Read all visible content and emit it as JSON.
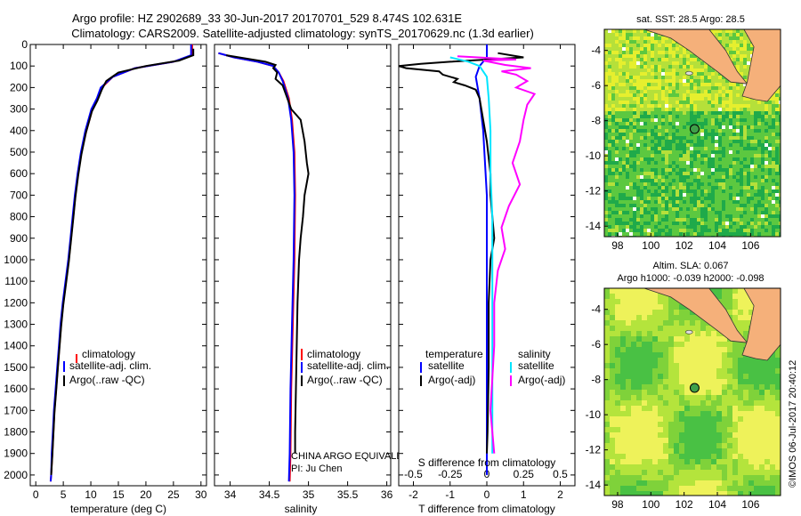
{
  "header": {
    "line1": "Argo profile: HZ 2902689_33 30-Jun-2017 20170701_529 8.474S 102.631E",
    "line2": "Climatology: CARS2009. Satellite-adjusted climatology: synTS_20170629.nc (1.3d earlier)"
  },
  "watermark": "©IMOS 06-Jul-2017 20:40:12",
  "colors": {
    "climatology": "#ff0000",
    "satellite": "#0000ff",
    "argo": "#000000",
    "sat_salinity": "#00e5ff",
    "argo_salinity": "#ff00ff",
    "land": "#f5b07a"
  },
  "chart_data": [
    {
      "id": "temperature",
      "type": "line",
      "xlabel": "temperature (deg C)",
      "ylabel": "",
      "xlim": [
        -1,
        31
      ],
      "ylim": [
        2050,
        0
      ],
      "xticks": [
        0,
        5,
        10,
        15,
        20,
        25,
        30
      ],
      "yticks": [
        0,
        100,
        200,
        300,
        400,
        500,
        600,
        700,
        800,
        900,
        1000,
        1100,
        1200,
        1300,
        1400,
        1500,
        1600,
        1700,
        1800,
        1900,
        2000
      ],
      "legend": [
        "climatology",
        "satellite-adj. clim.",
        "Argo(..raw -QC)"
      ],
      "legend_position": "lower-right",
      "series": [
        {
          "name": "climatology",
          "color": "#ff0000",
          "points": [
            [
              28.4,
              0
            ],
            [
              28.4,
              50
            ],
            [
              25,
              80
            ],
            [
              18,
              110
            ],
            [
              14,
              150
            ],
            [
              12,
              200
            ],
            [
              11.3,
              250
            ],
            [
              10.3,
              300
            ],
            [
              9.2,
              400
            ],
            [
              8.3,
              500
            ],
            [
              7.7,
              600
            ],
            [
              7.2,
              700
            ],
            [
              6.8,
              800
            ],
            [
              6.4,
              900
            ],
            [
              6.0,
              1000
            ],
            [
              5.5,
              1100
            ],
            [
              5.0,
              1200
            ],
            [
              4.6,
              1300
            ],
            [
              4.3,
              1400
            ],
            [
              4.0,
              1500
            ],
            [
              3.7,
              1600
            ],
            [
              3.4,
              1700
            ],
            [
              3.2,
              1800
            ],
            [
              3.0,
              1900
            ],
            [
              2.8,
              2000
            ],
            [
              2.7,
              2030
            ]
          ]
        },
        {
          "name": "satellite-adj. clim.",
          "color": "#0000ff",
          "points": [
            [
              28.2,
              0
            ],
            [
              28.2,
              50
            ],
            [
              25,
              80
            ],
            [
              18,
              110
            ],
            [
              14,
              150
            ],
            [
              11.8,
              200
            ],
            [
              11.1,
              250
            ],
            [
              10.1,
              300
            ],
            [
              9.0,
              400
            ],
            [
              8.2,
              500
            ],
            [
              7.6,
              600
            ],
            [
              7.1,
              700
            ],
            [
              6.7,
              800
            ],
            [
              6.3,
              900
            ],
            [
              5.9,
              1000
            ],
            [
              5.4,
              1100
            ],
            [
              4.9,
              1200
            ],
            [
              4.5,
              1300
            ],
            [
              4.2,
              1400
            ],
            [
              3.9,
              1500
            ],
            [
              3.6,
              1600
            ],
            [
              3.3,
              1700
            ],
            [
              3.1,
              1800
            ],
            [
              2.9,
              1900
            ],
            [
              2.8,
              2000
            ],
            [
              2.7,
              2030
            ]
          ]
        },
        {
          "name": "Argo(..raw -QC)",
          "color": "#000000",
          "points": [
            [
              28.6,
              20
            ],
            [
              28.6,
              50
            ],
            [
              26,
              75
            ],
            [
              20,
              100
            ],
            [
              15,
              130
            ],
            [
              12.8,
              170
            ],
            [
              12.0,
              210
            ],
            [
              11.2,
              260
            ],
            [
              10.2,
              310
            ],
            [
              9.1,
              410
            ],
            [
              8.3,
              510
            ],
            [
              7.7,
              610
            ],
            [
              7.2,
              710
            ],
            [
              6.8,
              810
            ],
            [
              6.4,
              910
            ],
            [
              6.0,
              1010
            ],
            [
              5.5,
              1110
            ],
            [
              5.0,
              1210
            ],
            [
              4.6,
              1310
            ],
            [
              4.3,
              1410
            ],
            [
              4.0,
              1510
            ],
            [
              3.7,
              1610
            ],
            [
              3.4,
              1710
            ],
            [
              3.2,
              1810
            ],
            [
              3.0,
              1910
            ],
            [
              2.8,
              2000
            ]
          ]
        }
      ]
    },
    {
      "id": "salinity",
      "type": "line",
      "xlabel": "salinity",
      "xlim": [
        33.8,
        36.05
      ],
      "ylim": [
        2050,
        0
      ],
      "xticks": [
        34,
        34.5,
        35,
        35.5,
        36
      ],
      "legend": [
        "climatology",
        "satellite-adj. clim.",
        "Argo(..raw -QC)"
      ],
      "legend_position": "lower-right",
      "annotations": [
        "CHINA ARGO EQUIVALENT",
        "PI: Ju Chen"
      ],
      "series": [
        {
          "name": "climatology",
          "color": "#ff0000",
          "points": [
            [
              33.85,
              40
            ],
            [
              34.05,
              60
            ],
            [
              34.35,
              80
            ],
            [
              34.55,
              100
            ],
            [
              34.62,
              130
            ],
            [
              34.68,
              170
            ],
            [
              34.75,
              250
            ],
            [
              34.79,
              350
            ],
            [
              34.82,
              500
            ],
            [
              34.83,
              700
            ],
            [
              34.82,
              1000
            ],
            [
              34.8,
              1300
            ],
            [
              34.78,
              1600
            ],
            [
              34.77,
              1900
            ],
            [
              34.76,
              2030
            ]
          ]
        },
        {
          "name": "satellite-adj. clim.",
          "color": "#0000ff",
          "points": [
            [
              33.85,
              40
            ],
            [
              34.05,
              60
            ],
            [
              34.35,
              80
            ],
            [
              34.55,
              100
            ],
            [
              34.62,
              130
            ],
            [
              34.67,
              170
            ],
            [
              34.74,
              250
            ],
            [
              34.78,
              350
            ],
            [
              34.81,
              500
            ],
            [
              34.82,
              700
            ],
            [
              34.81,
              1000
            ],
            [
              34.79,
              1300
            ],
            [
              34.77,
              1600
            ],
            [
              34.76,
              1900
            ],
            [
              34.75,
              2030
            ]
          ]
        },
        {
          "name": "Argo(..raw -QC)",
          "color": "#000000",
          "points": [
            [
              33.95,
              50
            ],
            [
              34.2,
              65
            ],
            [
              34.45,
              80
            ],
            [
              34.58,
              95
            ],
            [
              34.55,
              110
            ],
            [
              34.6,
              130
            ],
            [
              34.58,
              160
            ],
            [
              34.67,
              190
            ],
            [
              34.72,
              240
            ],
            [
              34.78,
              300
            ],
            [
              34.9,
              350
            ],
            [
              34.95,
              450
            ],
            [
              34.98,
              550
            ],
            [
              35.0,
              600
            ],
            [
              34.95,
              700
            ],
            [
              34.93,
              800
            ],
            [
              34.9,
              900
            ],
            [
              34.88,
              1000
            ],
            [
              34.86,
              1200
            ],
            [
              34.85,
              1400
            ],
            [
              34.84,
              1600
            ],
            [
              34.83,
              1800
            ],
            [
              34.83,
              1900
            ]
          ]
        }
      ]
    },
    {
      "id": "difference",
      "type": "line",
      "xlabel": "T difference from climatology",
      "xlabel_top": "S difference from climatology",
      "xlim": [
        -2.4,
        2.4
      ],
      "ylim": [
        2050,
        0
      ],
      "xticks": [
        -2,
        -1,
        0,
        1,
        2
      ],
      "xticks_top": [
        "-0.5",
        "-0.25",
        "0",
        "0.25",
        "0.5"
      ],
      "legend_left": [
        "temperature",
        "satellite",
        "Argo(-adj)"
      ],
      "legend_right": [
        "salinity",
        "satellite",
        "Argo(-adj)"
      ],
      "series": [
        {
          "name": "temperature satellite",
          "color": "#0000ff",
          "points": [
            [
              0,
              0
            ],
            [
              0,
              60
            ],
            [
              -0.2,
              100
            ],
            [
              -0.3,
              150
            ],
            [
              -0.2,
              250
            ],
            [
              -0.1,
              400
            ],
            [
              0,
              700
            ],
            [
              0,
              2000
            ]
          ]
        },
        {
          "name": "temperature Argo(-adj)",
          "color": "#000000",
          "points": [
            [
              0.3,
              40
            ],
            [
              1.0,
              60
            ],
            [
              -1.0,
              80
            ],
            [
              -1.8,
              90
            ],
            [
              -2.4,
              100
            ],
            [
              -2.2,
              110
            ],
            [
              -1.3,
              125
            ],
            [
              -1.2,
              140
            ],
            [
              -0.8,
              160
            ],
            [
              -0.9,
              175
            ],
            [
              -0.6,
              190
            ],
            [
              -0.3,
              210
            ],
            [
              -0.2,
              250
            ],
            [
              -0.1,
              350
            ],
            [
              0.0,
              450
            ],
            [
              0.1,
              600
            ],
            [
              0.1,
              700
            ],
            [
              0.2,
              900
            ],
            [
              0.1,
              1000
            ],
            [
              0.05,
              1200
            ],
            [
              0.05,
              1500
            ],
            [
              0.02,
              1800
            ],
            [
              0,
              1900
            ]
          ]
        },
        {
          "name": "salinity satellite",
          "color": "#00e5ff",
          "points": [
            [
              -1.0,
              60
            ],
            [
              -0.5,
              80
            ],
            [
              -0.2,
              100
            ],
            [
              0.0,
              150
            ],
            [
              0.05,
              250
            ],
            [
              0.1,
              400
            ],
            [
              0.1,
              600
            ],
            [
              0.15,
              800
            ],
            [
              0.15,
              1100
            ],
            [
              0.15,
              1500
            ],
            [
              0.15,
              1900
            ]
          ]
        },
        {
          "name": "salinity Argo(-adj)",
          "color": "#ff00ff",
          "points": [
            [
              -0.8,
              55
            ],
            [
              0.8,
              70
            ],
            [
              -0.1,
              75
            ],
            [
              0.5,
              95
            ],
            [
              1.2,
              110
            ],
            [
              0.4,
              125
            ],
            [
              0.8,
              140
            ],
            [
              1.1,
              170
            ],
            [
              0.8,
              200
            ],
            [
              1.3,
              230
            ],
            [
              1.1,
              280
            ],
            [
              1.0,
              350
            ],
            [
              0.9,
              450
            ],
            [
              0.7,
              550
            ],
            [
              0.9,
              650
            ],
            [
              0.6,
              750
            ],
            [
              0.4,
              850
            ],
            [
              0.5,
              950
            ],
            [
              0.3,
              1050
            ],
            [
              0.2,
              1200
            ],
            [
              0.2,
              1400
            ],
            [
              0.1,
              1700
            ],
            [
              0.2,
              1900
            ]
          ]
        }
      ]
    },
    {
      "id": "map-sst",
      "type": "heatmap",
      "title": "sat. SST: 28.5  Argo: 28.5",
      "xlim": [
        97.2,
        107.8
      ],
      "ylim": [
        -14.6,
        -2.8
      ],
      "xticks": [
        98,
        100,
        102,
        104,
        106
      ],
      "yticks": [
        -4,
        -6,
        -8,
        -10,
        -12,
        -14
      ],
      "marker": {
        "lon": 102.631,
        "lat": -8.474
      }
    },
    {
      "id": "map-sla",
      "type": "heatmap",
      "title_line1": "Altim. SLA: 0.067",
      "title_line2": "Argo h1000: -0.039 h2000: -0.098",
      "xlim": [
        97.2,
        107.8
      ],
      "ylim": [
        -14.6,
        -2.8
      ],
      "xticks": [
        98,
        100,
        102,
        104,
        106
      ],
      "yticks": [
        -4,
        -6,
        -8,
        -10,
        -12,
        -14
      ],
      "marker": {
        "lon": 102.631,
        "lat": -8.474
      }
    }
  ]
}
